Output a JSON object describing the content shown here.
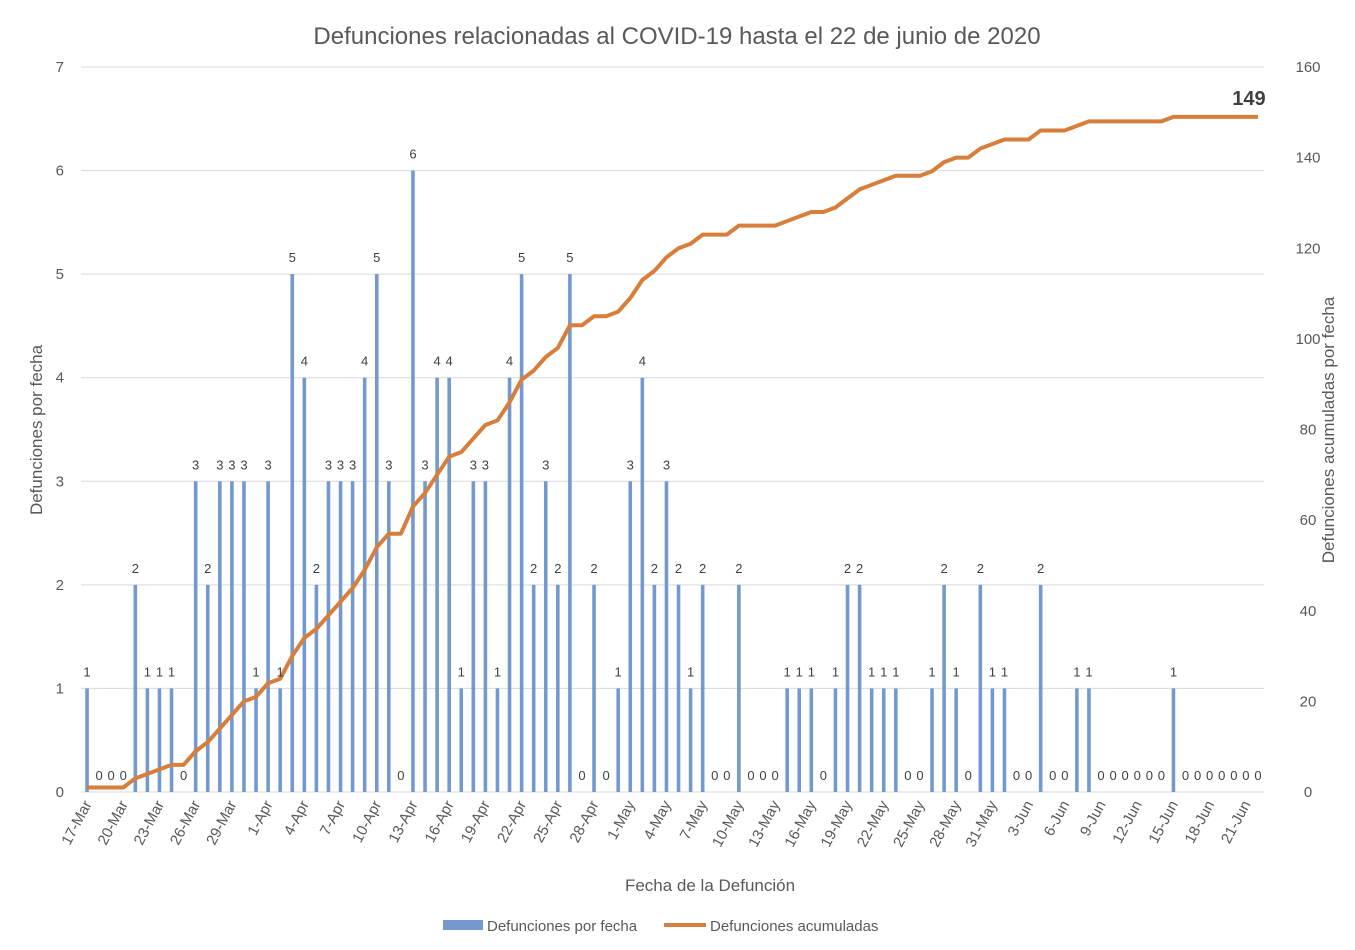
{
  "chart_data": {
    "type": "bar+line",
    "title": "Defunciones relacionadas al COVID-19 hasta el 22 de junio de 2020",
    "xlabel": "Fecha de la Defunción",
    "ylabel_left": "Defunciones por fecha",
    "ylabel_right": "Defunciones acumuladas por fecha",
    "ylim_left": [
      0,
      7
    ],
    "ylim_right": [
      0,
      160
    ],
    "yticks_left": [
      "0",
      "1",
      "2",
      "3",
      "4",
      "5",
      "6",
      "7"
    ],
    "yticks_right": [
      "0",
      "20",
      "40",
      "60",
      "80",
      "100",
      "120",
      "140",
      "160"
    ],
    "first_date": "17-Mar",
    "last_date": "22-Jun",
    "x_tick_labels": [
      "17-Mar",
      "20-Mar",
      "23-Mar",
      "26-Mar",
      "29-Mar",
      "1-Apr",
      "4-Apr",
      "7-Apr",
      "10-Apr",
      "13-Apr",
      "16-Apr",
      "19-Apr",
      "22-Apr",
      "25-Apr",
      "28-Apr",
      "1-May",
      "4-May",
      "7-May",
      "10-May",
      "13-May",
      "16-May",
      "19-May",
      "22-May",
      "25-May",
      "28-May",
      "31-May",
      "3-Jun",
      "6-Jun",
      "9-Jun",
      "12-Jun",
      "15-Jun",
      "18-Jun",
      "21-Jun"
    ],
    "x_tick_every": 3,
    "series": [
      {
        "name": "Defunciones por fecha",
        "type": "bar",
        "color": "#7399CF",
        "values": [
          1,
          0,
          0,
          0,
          2,
          1,
          1,
          1,
          0,
          3,
          2,
          3,
          3,
          3,
          1,
          3,
          1,
          5,
          4,
          2,
          3,
          3,
          3,
          4,
          5,
          3,
          0,
          6,
          3,
          4,
          4,
          1,
          3,
          3,
          1,
          4,
          5,
          2,
          3,
          2,
          5,
          0,
          2,
          0,
          1,
          3,
          4,
          2,
          3,
          2,
          1,
          2,
          0,
          0,
          2,
          0,
          0,
          0,
          1,
          1,
          1,
          0,
          1,
          2,
          2,
          1,
          1,
          1,
          0,
          0,
          1,
          2,
          1,
          0,
          2,
          1,
          1,
          0,
          0,
          2,
          0,
          0,
          1,
          1,
          0,
          0,
          0,
          0,
          0,
          0,
          1,
          0,
          0,
          0,
          0,
          0,
          0,
          0
        ]
      },
      {
        "name": "Defunciones acumuladas",
        "type": "line",
        "color": "#D67E3A",
        "cumulative_of": 0,
        "final_label": "149"
      }
    ],
    "grid": true,
    "legend_position": "bottom"
  }
}
